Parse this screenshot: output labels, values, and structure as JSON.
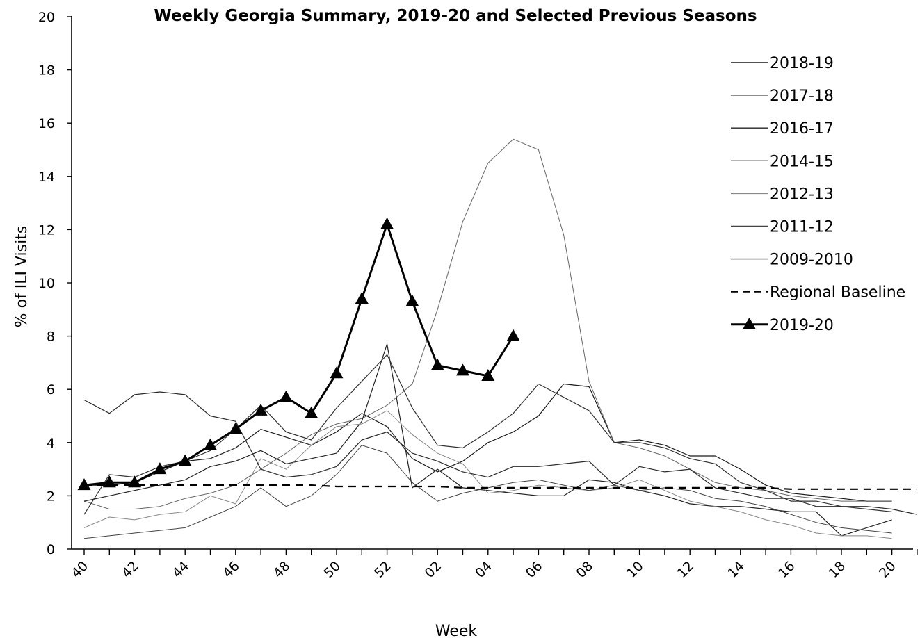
{
  "chart_data": {
    "type": "line",
    "title": "Weekly Georgia Summary, 2019-20 and Selected Previous Seasons",
    "xlabel": "Week",
    "ylabel": "% of ILI Visits",
    "ylim": [
      0,
      20
    ],
    "yticks": [
      "0",
      "2",
      "4",
      "6",
      "8",
      "10",
      "12",
      "14",
      "16",
      "18",
      "20"
    ],
    "xticks": [
      "40",
      "42",
      "44",
      "46",
      "48",
      "50",
      "52",
      "02",
      "04",
      "06",
      "08",
      "10",
      "12",
      "14",
      "16",
      "18",
      "20"
    ],
    "week_order": [
      "40",
      "41",
      "42",
      "43",
      "44",
      "45",
      "46",
      "47",
      "48",
      "49",
      "50",
      "51",
      "52",
      "01",
      "02",
      "03",
      "04",
      "05",
      "06",
      "07",
      "08",
      "09",
      "10",
      "11",
      "12",
      "13",
      "14",
      "15",
      "16",
      "17",
      "18",
      "19",
      "20",
      "21"
    ],
    "legend_position": "top-right",
    "grid": false,
    "series": [
      {
        "name": "2018-19",
        "color": "#1a1a1a",
        "width": 1.2,
        "style": "solid",
        "values": [
          2.4,
          2.4,
          2.5,
          2.9,
          3.3,
          3.4,
          3.8,
          4.5,
          4.2,
          3.9,
          4.4,
          5.1,
          4.6,
          3.4,
          2.9,
          3.3,
          4.0,
          4.4,
          5.0,
          6.2,
          6.1,
          4.0,
          4.1,
          3.9,
          3.5,
          3.5,
          3.0,
          2.4,
          2.1,
          2.0,
          1.9,
          1.8,
          1.8
        ]
      },
      {
        "name": "2017-18",
        "color": "#666666",
        "width": 1.0,
        "style": "solid",
        "values": [
          1.8,
          1.5,
          1.5,
          1.6,
          1.9,
          2.1,
          2.4,
          3.0,
          3.6,
          4.3,
          4.7,
          4.9,
          5.4,
          6.2,
          9.0,
          12.3,
          14.5,
          15.4,
          15.0,
          11.8,
          6.3,
          4.0,
          3.8,
          3.5,
          3.0,
          2.5,
          2.3,
          2.2,
          2.0,
          1.9,
          1.8,
          1.8,
          1.8
        ]
      },
      {
        "name": "2016-17",
        "color": "#222222",
        "width": 1.2,
        "style": "solid",
        "values": [
          1.8,
          2.0,
          2.2,
          2.4,
          2.6,
          3.1,
          3.3,
          3.7,
          3.2,
          3.4,
          3.6,
          4.8,
          7.7,
          2.3,
          3.0,
          2.3,
          2.2,
          2.1,
          2.0,
          2.0,
          2.6,
          2.5,
          2.2,
          2.0,
          1.7,
          1.6,
          1.6,
          1.5,
          1.4,
          1.4,
          0.5,
          0.8,
          1.1
        ]
      },
      {
        "name": "2014-15",
        "color": "#333333",
        "width": 1.2,
        "style": "solid",
        "values": [
          1.3,
          2.8,
          2.7,
          3.1,
          3.3,
          3.7,
          4.5,
          5.4,
          4.4,
          4.1,
          5.3,
          6.3,
          7.3,
          5.3,
          3.9,
          3.8,
          4.4,
          5.1,
          6.2,
          5.7,
          5.2,
          4.0,
          4.0,
          3.8,
          3.4,
          3.2,
          2.5,
          2.2,
          1.8,
          1.8,
          1.6,
          1.5,
          1.4
        ]
      },
      {
        "name": "2012-13",
        "color": "#888888",
        "width": 1.0,
        "style": "solid",
        "values": [
          0.8,
          1.2,
          1.1,
          1.3,
          1.4,
          2.0,
          1.7,
          3.4,
          3.0,
          3.9,
          4.6,
          4.7,
          5.2,
          4.3,
          3.6,
          3.2,
          2.1,
          2.2,
          2.4,
          2.3,
          2.2,
          2.3,
          2.6,
          2.2,
          1.8,
          1.6,
          1.4,
          1.1,
          0.9,
          0.6,
          0.5,
          0.5,
          0.4
        ]
      },
      {
        "name": "2011-12",
        "color": "#444444",
        "width": 1.0,
        "style": "solid",
        "values": [
          0.4,
          0.5,
          0.6,
          0.7,
          0.8,
          1.2,
          1.6,
          2.3,
          1.6,
          2.0,
          2.8,
          3.9,
          3.6,
          2.5,
          1.8,
          2.1,
          2.3,
          2.5,
          2.6,
          2.4,
          2.2,
          2.4,
          2.2,
          2.3,
          2.2,
          1.9,
          1.8,
          1.6,
          1.3,
          1.0,
          0.8,
          0.7,
          0.6
        ]
      },
      {
        "name": "2009-2010",
        "color": "#2a2a2a",
        "width": 1.2,
        "style": "solid",
        "values": [
          5.6,
          5.1,
          5.8,
          5.9,
          5.8,
          5.0,
          4.8,
          3.0,
          2.7,
          2.8,
          3.1,
          4.1,
          4.4,
          3.6,
          3.3,
          2.9,
          2.7,
          3.1,
          3.1,
          3.2,
          3.3,
          2.4,
          3.1,
          2.9,
          3.0,
          2.3,
          2.1,
          1.9,
          1.9,
          1.6,
          1.6,
          1.6,
          1.5,
          1.3
        ]
      },
      {
        "name": "Regional Baseline",
        "color": "#000000",
        "width": 2.2,
        "style": "dashed",
        "values": [
          2.4,
          2.4,
          2.4,
          2.4,
          2.4,
          2.4,
          2.4,
          2.4,
          2.4,
          2.4,
          2.35,
          2.35,
          2.35,
          2.35,
          2.35,
          2.3,
          2.3,
          2.3,
          2.3,
          2.3,
          2.3,
          2.3,
          2.3,
          2.3,
          2.3,
          2.3,
          2.3,
          2.3,
          2.25,
          2.25,
          2.25,
          2.25,
          2.25,
          2.25
        ]
      },
      {
        "name": "2019-20",
        "color": "#000000",
        "width": 3,
        "style": "solid",
        "marker": "triangle",
        "values": [
          2.4,
          2.5,
          2.5,
          3.0,
          3.3,
          3.9,
          4.5,
          5.2,
          5.7,
          5.1,
          6.6,
          9.4,
          12.2,
          9.3,
          6.9,
          6.7,
          6.5,
          8.0
        ]
      }
    ]
  }
}
